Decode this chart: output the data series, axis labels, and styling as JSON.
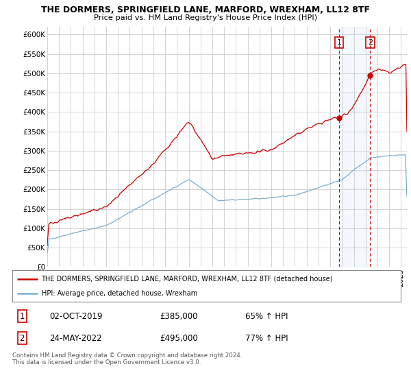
{
  "title": "THE DORMERS, SPRINGFIELD LANE, MARFORD, WREXHAM, LL12 8TF",
  "subtitle": "Price paid vs. HM Land Registry's House Price Index (HPI)",
  "ylabel_ticks": [
    "£0",
    "£50K",
    "£100K",
    "£150K",
    "£200K",
    "£250K",
    "£300K",
    "£350K",
    "£400K",
    "£450K",
    "£500K",
    "£550K",
    "£600K"
  ],
  "ytick_values": [
    0,
    50000,
    100000,
    150000,
    200000,
    250000,
    300000,
    350000,
    400000,
    450000,
    500000,
    550000,
    600000
  ],
  "xlim_start": 1995.0,
  "xlim_end": 2025.5,
  "ylim_min": 0,
  "ylim_max": 620000,
  "red_line_color": "#cc0000",
  "blue_line_color": "#7aadcf",
  "marker1_date": 2019.75,
  "marker1_value": 385000,
  "marker1_label": "1",
  "marker2_date": 2022.38,
  "marker2_value": 495000,
  "marker2_label": "2",
  "legend_line1": "THE DORMERS, SPRINGFIELD LANE, MARFORD, WREXHAM, LL12 8TF (detached house)",
  "legend_line2": "HPI: Average price, detached house, Wrexham",
  "table_row1": [
    "1",
    "02-OCT-2019",
    "£385,000",
    "65% ↑ HPI"
  ],
  "table_row2": [
    "2",
    "24-MAY-2022",
    "£495,000",
    "77% ↑ HPI"
  ],
  "footer": "Contains HM Land Registry data © Crown copyright and database right 2024.\nThis data is licensed under the Open Government Licence v3.0.",
  "background_color": "#ffffff",
  "grid_color": "#cccccc"
}
